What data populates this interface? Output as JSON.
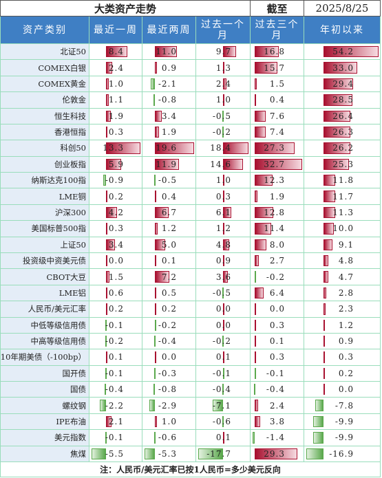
{
  "title": "大类资产走势",
  "as_of_label": "截至",
  "date": "2025/8/25",
  "table": {
    "header": [
      "资产类别",
      "最近一周",
      "最近两周",
      "过去一个月",
      "过去三个月",
      "年初以来"
    ],
    "rows": [
      [
        "北证50",
        "8.4",
        "11.0",
        "9.7",
        "16.8",
        "54.2"
      ],
      [
        "COMEX白银",
        "2.4",
        "0.9",
        "1.3",
        "15.7",
        "33.0"
      ],
      [
        "COMEX黄金",
        "1.0",
        "-2.1",
        "2.4",
        "1.5",
        "29.4"
      ],
      [
        "伦敦金",
        "1.1",
        "-0.8",
        "1.0",
        "0.4",
        "28.5"
      ],
      [
        "恒生科技",
        "1.9",
        "3.4",
        "-0.5",
        "7.6",
        "26.4"
      ],
      [
        "香港恒指",
        "0.3",
        "1.9",
        "-0.2",
        "7.4",
        "26.3"
      ],
      [
        "科创50",
        "13.3",
        "19.6",
        "18.4",
        "27.3",
        "26.2"
      ],
      [
        "创业板指",
        "5.9",
        "11.9",
        "14.6",
        "32.7",
        "25.3"
      ],
      [
        "纳斯达克100指",
        "-0.9",
        "-0.5",
        "1.0",
        "12.3",
        "11.8"
      ],
      [
        "LME铜",
        "0.2",
        "0.4",
        "0.3",
        "1.9",
        "11.7"
      ],
      [
        "沪深300",
        "4.2",
        "6.7",
        "6.1",
        "12.8",
        "11.3"
      ],
      [
        "美国标普500指",
        "0.3",
        "1.2",
        "1.2",
        "11.4",
        "10.0"
      ],
      [
        "上证50",
        "3.4",
        "5.0",
        "4.8",
        "8.0",
        "9.1"
      ],
      [
        "投资级中资美元债",
        "0.0",
        "0.1",
        "0.9",
        "2.7",
        "4.8"
      ],
      [
        "CBOT大豆",
        "1.5",
        "7.2",
        "3.6",
        "-0.2",
        "4.7"
      ],
      [
        "LME铝",
        "0.6",
        "0.5",
        "-0.5",
        "6.4",
        "2.8"
      ],
      [
        "人民币/美元汇率",
        "0.2",
        "0.2",
        "0.0",
        "0.0",
        "2.3"
      ],
      [
        "中低等级信用债",
        "-0.1",
        "-0.2",
        "0.0",
        "0.3",
        "1.2"
      ],
      [
        "中高等级信用债",
        "-0.2",
        "-0.4",
        "-0.2",
        "0.1",
        "0.9"
      ],
      [
        "10年期美债（-100bp）",
        "0.1",
        "0.0",
        "0.1",
        "0.3",
        "0.3"
      ],
      [
        "国开债",
        "-0.1",
        "-0.3",
        "-0.1",
        "-0.1",
        "0.2"
      ],
      [
        "国债",
        "-0.4",
        "-0.8",
        "-0.4",
        "-0.4",
        "0.0"
      ],
      [
        "螺纹钢",
        "-2.2",
        "-2.9",
        "-7.1",
        "2.4",
        "-7.8"
      ],
      [
        "IPE布油",
        "2.1",
        "1.0",
        "-0.6",
        "3.8",
        "-9.9"
      ],
      [
        "美元指数",
        "-0.1",
        "-0.6",
        "0.1",
        "-1.4",
        "-9.9"
      ],
      [
        "焦煤",
        "-5.5",
        "-5.3",
        "-17.7",
        "29.3",
        "-16.9"
      ]
    ]
  },
  "note": "注：人民币/美元汇率已按1人民币=多少美元反向"
}
